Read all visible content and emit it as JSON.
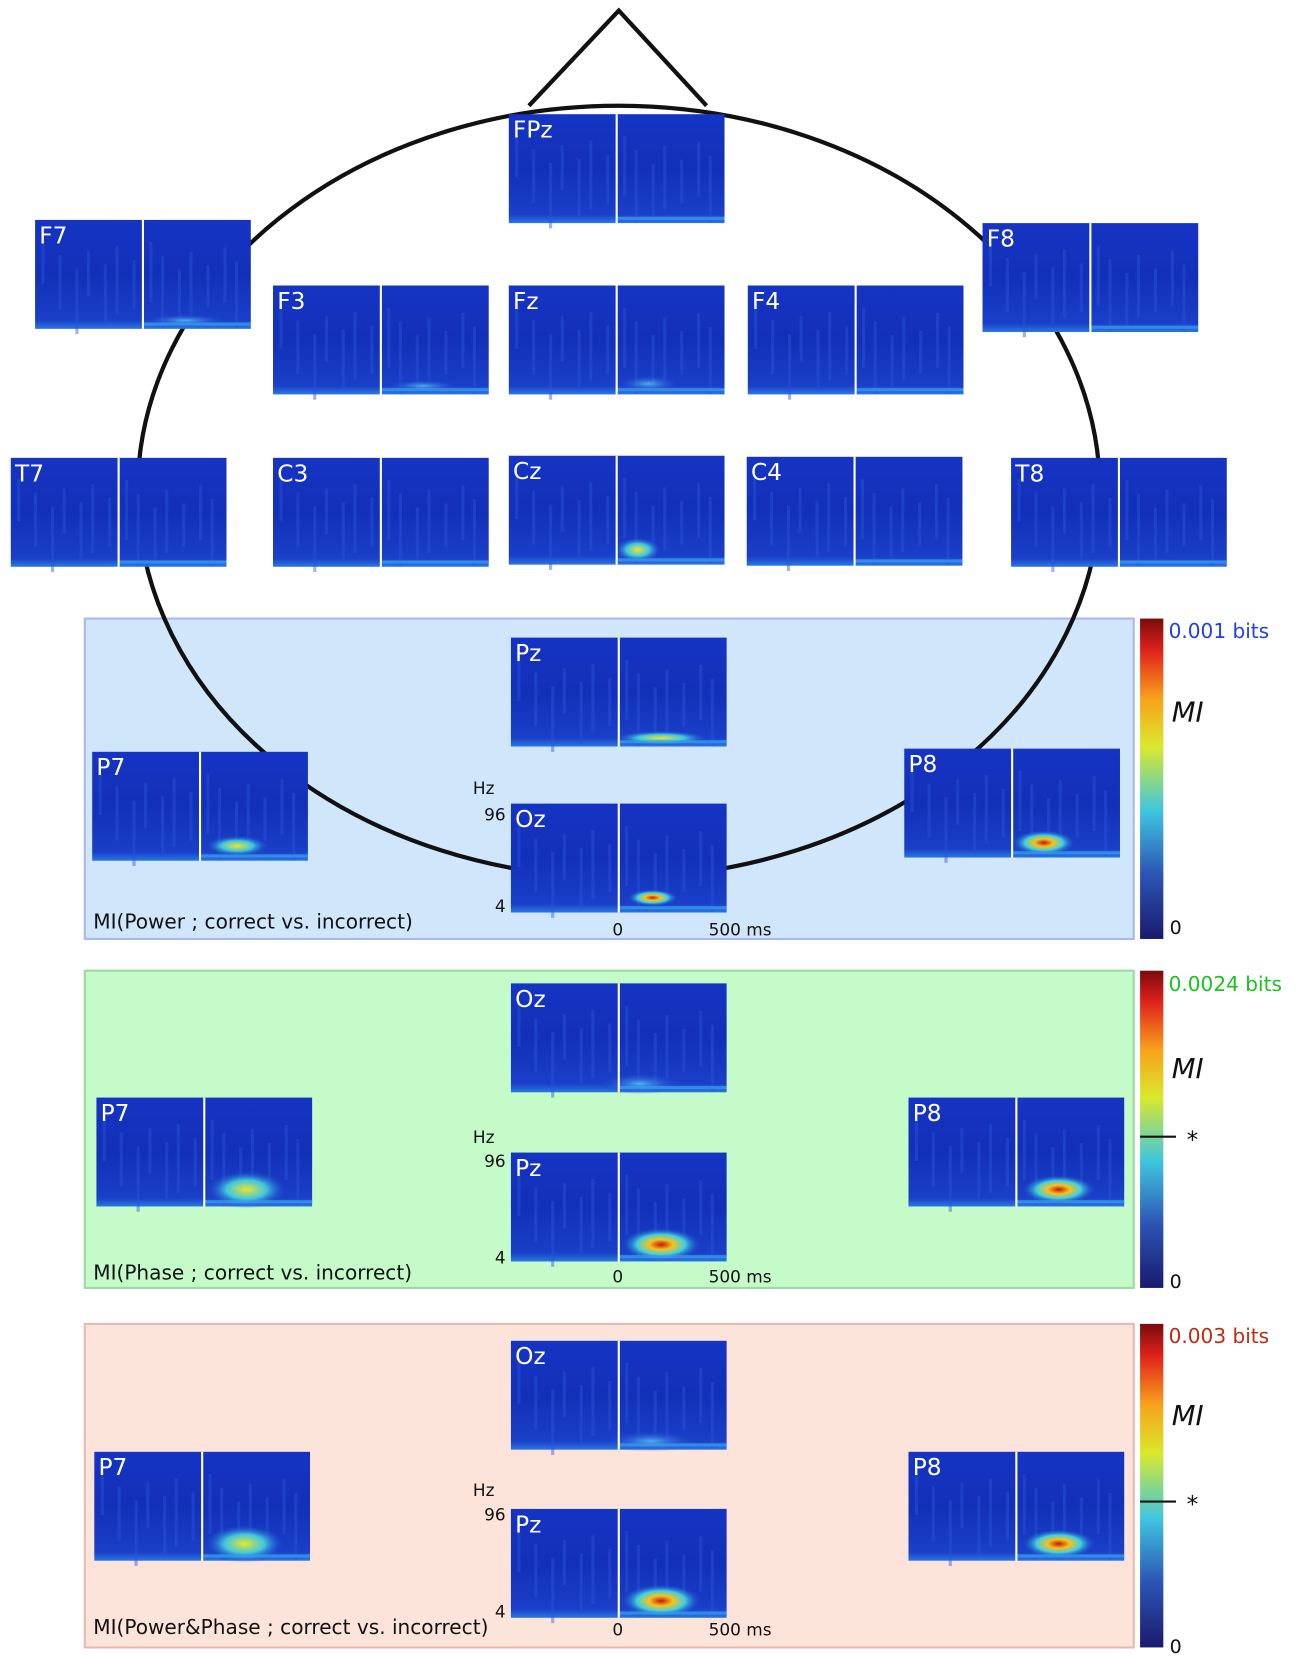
{
  "head": {
    "electrodes": [
      "FPz",
      "F7",
      "F8",
      "F3",
      "Fz",
      "F4",
      "T7",
      "C3",
      "Cz",
      "C4",
      "T8",
      "Pz",
      "P7",
      "P8",
      "Oz"
    ]
  },
  "panels": [
    {
      "title": "MI(Power ; correct vs. incorrect)",
      "electrodes": [],
      "axis": {
        "unit": "Hz",
        "top": "96",
        "bottom": "4",
        "start": "0",
        "end": "500 ms"
      },
      "colorbar": {
        "max": "0.001 bits",
        "label": "MI",
        "min": "0"
      }
    },
    {
      "title": "MI(Phase ; correct vs. incorrect)",
      "electrodes": [
        "Oz",
        "P7",
        "P8",
        "Pz"
      ],
      "axis": {
        "unit": "Hz",
        "top": "96",
        "bottom": "4",
        "start": "0",
        "end": "500 ms"
      },
      "colorbar": {
        "max": "0.0024 bits",
        "label": "MI",
        "threshold": "*",
        "min": "0"
      }
    },
    {
      "title": "MI(Power&Phase ; correct vs. incorrect)",
      "electrodes": [
        "Oz",
        "P7",
        "P8",
        "Pz"
      ],
      "axis": {
        "unit": "Hz",
        "top": "96",
        "bottom": "4",
        "start": "0",
        "end": "500 ms"
      },
      "colorbar": {
        "max": "0.003 bits",
        "label": "MI",
        "threshold": "*",
        "min": "0"
      }
    }
  ]
}
